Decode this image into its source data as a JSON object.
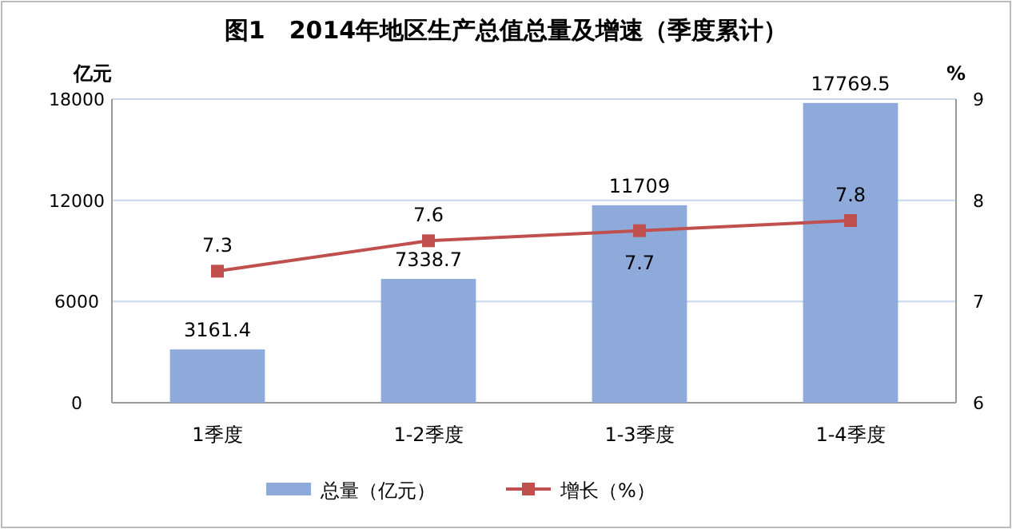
{
  "chart_data": {
    "type": "bar",
    "title": "图1　2014年地区生产总值总量及增速（季度累计）",
    "categories": [
      "1季度",
      "1-2季度",
      "1-3季度",
      "1-4季度"
    ],
    "ylabel": "亿元",
    "y2label": "%",
    "series": [
      {
        "name": "总量（亿元）",
        "color": "#8eaadb",
        "values": [
          3161.4,
          7338.7,
          11709,
          17769.5
        ]
      },
      {
        "name": "增长（%）",
        "type": "line",
        "axis": "y2",
        "color": "#c0504d",
        "marker": "square",
        "values": [
          7.3,
          7.6,
          7.7,
          7.8
        ]
      }
    ],
    "ylim": [
      0,
      18000
    ],
    "yticks": [
      0,
      6000,
      12000,
      18000
    ],
    "y2lim": [
      6,
      9
    ],
    "y2ticks": [
      6,
      7,
      8,
      9
    ],
    "grid": "y",
    "legend": "bottom",
    "data_labels": true
  }
}
